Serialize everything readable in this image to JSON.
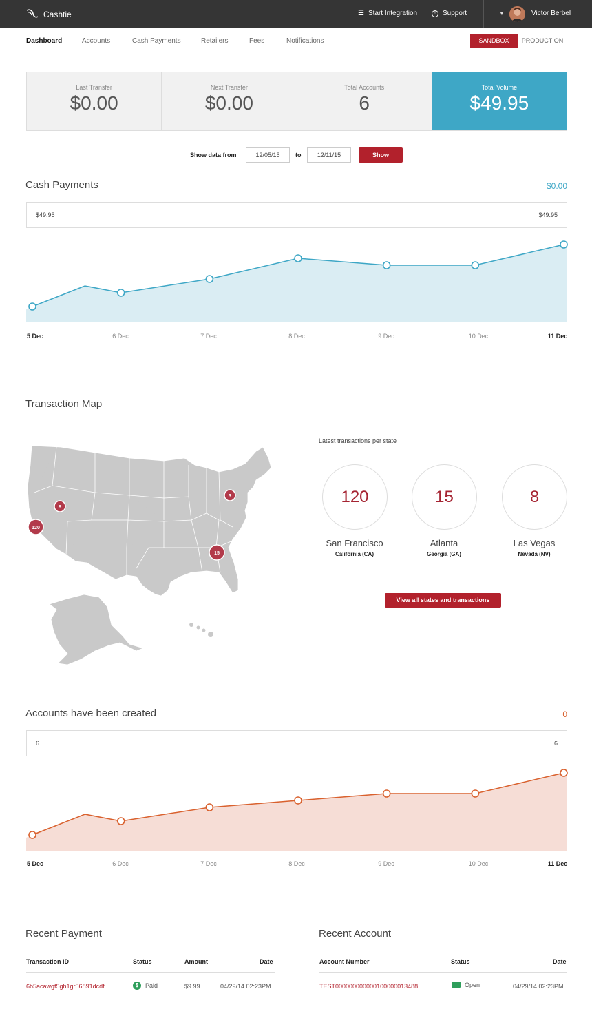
{
  "app": {
    "brand": "Cashtie"
  },
  "topbar": {
    "start_integration": "Start Integration",
    "support": "Support",
    "user_name": "Victor Berbel"
  },
  "nav": {
    "items": [
      "Dashboard",
      "Accounts",
      "Cash Payments",
      "Retailers",
      "Fees",
      "Notifications"
    ],
    "active": "Dashboard"
  },
  "env": {
    "sandbox": "SANDBOX",
    "production": "PRODUCTION",
    "active": "SANDBOX"
  },
  "stats": [
    {
      "label": "Last Transfer",
      "value": "$0.00"
    },
    {
      "label": "Next Transfer",
      "value": "$0.00"
    },
    {
      "label": "Total Accounts",
      "value": "6"
    },
    {
      "label": "Total Volume",
      "value": "$49.95"
    }
  ],
  "date_filter": {
    "label": "Show data from",
    "from": "12/05/15",
    "to_label": "to",
    "to": "12/11/15",
    "button": "Show"
  },
  "cash_payments": {
    "title": "Cash Payments",
    "total": "$0.00",
    "range_left": "$49.95",
    "range_right": "$49.95",
    "chart_data": {
      "type": "area",
      "x": [
        "5 Dec",
        "6 Dec",
        "7 Dec",
        "8 Dec",
        "9 Dec",
        "10 Dec",
        "11 Dec"
      ],
      "values": [
        2,
        4,
        6,
        9,
        8,
        8,
        11
      ],
      "color": "#3ea7c6"
    }
  },
  "transaction_map": {
    "title": "Transaction Map",
    "latest_label": "Latest transactions per state",
    "markers": [
      {
        "count": "120"
      },
      {
        "count": "8"
      },
      {
        "count": "3"
      },
      {
        "count": "15"
      }
    ],
    "top_states": [
      {
        "count": "120",
        "city": "San Francisco",
        "state": "California (CA)"
      },
      {
        "count": "15",
        "city": "Atlanta",
        "state": "Georgia (GA)"
      },
      {
        "count": "8",
        "city": "Las Vegas",
        "state": "Nevada (NV)"
      }
    ],
    "view_all": "View all states and transactions"
  },
  "accounts_created": {
    "title": "Accounts have been created",
    "total": "0",
    "range_left": "6",
    "range_right": "6",
    "chart_data": {
      "type": "area",
      "x": [
        "5 Dec",
        "6 Dec",
        "7 Dec",
        "8 Dec",
        "9 Dec",
        "10 Dec",
        "11 Dec"
      ],
      "values": [
        2,
        4,
        6,
        7,
        8,
        8,
        11
      ],
      "color": "#d9612e"
    }
  },
  "recent_payment": {
    "title": "Recent Payment",
    "columns": [
      "Transaction ID",
      "Status",
      "Amount",
      "Date"
    ],
    "rows": [
      {
        "id": "6b5acawgf5gh1gr56891dcdf",
        "status": "Paid",
        "amount": "$9.99",
        "date": "04/29/14 02:23PM"
      }
    ]
  },
  "recent_account": {
    "title": "Recent Account",
    "columns": [
      "Account Number",
      "Status",
      "Date"
    ],
    "rows": [
      {
        "number": "TEST000000000000100000013488",
        "status": "Open",
        "date": "04/29/14 02:23PM"
      }
    ]
  },
  "colors": {
    "brand_red": "#b2212c",
    "accent_blue": "#3ea7c6",
    "accent_orange": "#d9612e"
  }
}
